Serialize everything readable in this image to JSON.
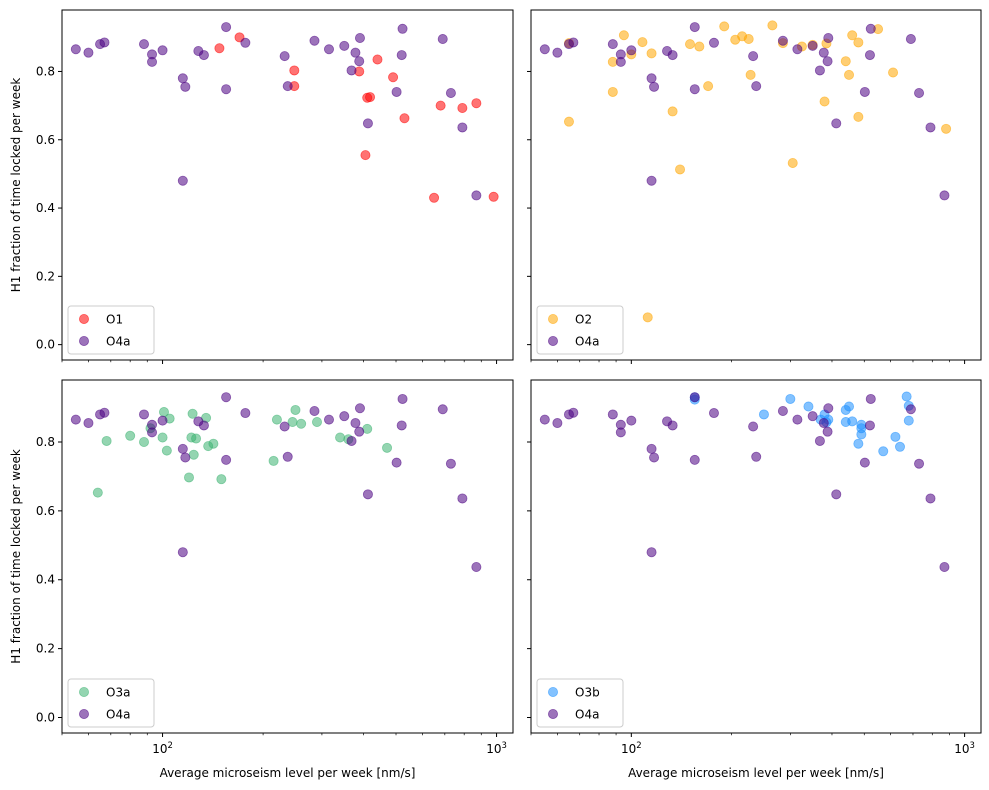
{
  "chart_data": [
    {
      "type": "scatter",
      "ylabel": "H1 fraction of time locked per week",
      "xlabel": "",
      "xscale": "log",
      "xlim": [
        50,
        1120
      ],
      "ylim": [
        -0.045,
        0.98
      ],
      "xticks": [
        {
          "value": 100,
          "label": "10²"
        },
        {
          "value": 1000,
          "label": "10³"
        }
      ],
      "yticks": [
        "0.0",
        "0.2",
        "0.4",
        "0.6",
        "0.8"
      ],
      "legend_position": "lower-left",
      "series": [
        {
          "name": "O1",
          "color": "#ff0000",
          "points": [
            [
              148,
              0.868
            ],
            [
              170,
              0.9
            ],
            [
              248,
              0.803
            ],
            [
              248,
              0.757
            ],
            [
              388,
              0.8
            ],
            [
              405,
              0.555
            ],
            [
              410,
              0.723
            ],
            [
              418,
              0.725
            ],
            [
              440,
              0.835
            ],
            [
              490,
              0.783
            ],
            [
              530,
              0.663
            ],
            [
              650,
              0.43
            ],
            [
              680,
              0.7
            ],
            [
              790,
              0.693
            ],
            [
              870,
              0.707
            ],
            [
              980,
              0.433
            ]
          ]
        },
        {
          "name": "O4a",
          "color": "#4b0082",
          "points": [
            [
              55,
              0.865
            ],
            [
              60,
              0.855
            ],
            [
              65,
              0.88
            ],
            [
              67,
              0.885
            ],
            [
              88,
              0.88
            ],
            [
              93,
              0.828
            ],
            [
              93,
              0.85
            ],
            [
              100,
              0.862
            ],
            [
              115,
              0.78
            ],
            [
              115,
              0.48
            ],
            [
              117,
              0.755
            ],
            [
              128,
              0.86
            ],
            [
              133,
              0.848
            ],
            [
              155,
              0.93
            ],
            [
              155,
              0.748
            ],
            [
              177,
              0.884
            ],
            [
              232,
              0.845
            ],
            [
              237,
              0.757
            ],
            [
              285,
              0.89
            ],
            [
              315,
              0.865
            ],
            [
              350,
              0.875
            ],
            [
              368,
              0.803
            ],
            [
              378,
              0.855
            ],
            [
              388,
              0.83
            ],
            [
              390,
              0.898
            ],
            [
              412,
              0.648
            ],
            [
              502,
              0.74
            ],
            [
              520,
              0.848
            ],
            [
              523,
              0.925
            ],
            [
              690,
              0.895
            ],
            [
              730,
              0.737
            ],
            [
              790,
              0.636
            ],
            [
              870,
              0.437
            ]
          ]
        }
      ]
    },
    {
      "type": "scatter",
      "ylabel": "",
      "xlabel": "",
      "xscale": "log",
      "xlim": [
        50,
        1120
      ],
      "ylim": [
        -0.045,
        0.98
      ],
      "xticks": [
        {
          "value": 100,
          "label": "10²"
        },
        {
          "value": 1000,
          "label": "10³"
        }
      ],
      "yticks": [
        "0.0",
        "0.2",
        "0.4",
        "0.6",
        "0.8"
      ],
      "legend_position": "lower-left",
      "series": [
        {
          "name": "O2",
          "color": "#ffa500",
          "points": [
            [
              65,
              0.653
            ],
            [
              65,
              0.883
            ],
            [
              88,
              0.74
            ],
            [
              88,
              0.828
            ],
            [
              95,
              0.906
            ],
            [
              100,
              0.85
            ],
            [
              108,
              0.886
            ],
            [
              112,
              0.08
            ],
            [
              115,
              0.853
            ],
            [
              133,
              0.683
            ],
            [
              140,
              0.513
            ],
            [
              150,
              0.88
            ],
            [
              160,
              0.873
            ],
            [
              170,
              0.757
            ],
            [
              190,
              0.932
            ],
            [
              205,
              0.893
            ],
            [
              215,
              0.903
            ],
            [
              225,
              0.895
            ],
            [
              228,
              0.79
            ],
            [
              265,
              0.935
            ],
            [
              285,
              0.883
            ],
            [
              305,
              0.532
            ],
            [
              325,
              0.873
            ],
            [
              350,
              0.878
            ],
            [
              380,
              0.712
            ],
            [
              385,
              0.882
            ],
            [
              440,
              0.83
            ],
            [
              450,
              0.79
            ],
            [
              460,
              0.906
            ],
            [
              480,
              0.667
            ],
            [
              480,
              0.885
            ],
            [
              550,
              0.924
            ],
            [
              610,
              0.797
            ],
            [
              880,
              0.632
            ]
          ]
        },
        {
          "name": "O4a",
          "color": "#4b0082",
          "points": [
            [
              55,
              0.865
            ],
            [
              60,
              0.855
            ],
            [
              65,
              0.88
            ],
            [
              67,
              0.885
            ],
            [
              88,
              0.88
            ],
            [
              93,
              0.828
            ],
            [
              93,
              0.85
            ],
            [
              100,
              0.862
            ],
            [
              115,
              0.78
            ],
            [
              115,
              0.48
            ],
            [
              117,
              0.755
            ],
            [
              128,
              0.86
            ],
            [
              133,
              0.848
            ],
            [
              155,
              0.93
            ],
            [
              155,
              0.748
            ],
            [
              177,
              0.884
            ],
            [
              232,
              0.845
            ],
            [
              237,
              0.757
            ],
            [
              285,
              0.89
            ],
            [
              315,
              0.865
            ],
            [
              350,
              0.875
            ],
            [
              368,
              0.803
            ],
            [
              378,
              0.855
            ],
            [
              388,
              0.83
            ],
            [
              390,
              0.898
            ],
            [
              412,
              0.648
            ],
            [
              502,
              0.74
            ],
            [
              520,
              0.848
            ],
            [
              523,
              0.925
            ],
            [
              690,
              0.895
            ],
            [
              730,
              0.737
            ],
            [
              790,
              0.636
            ],
            [
              870,
              0.437
            ]
          ]
        }
      ]
    },
    {
      "type": "scatter",
      "ylabel": "H1 fraction of time locked per week",
      "xlabel": "Average microseism level per week [nm/s]",
      "xscale": "log",
      "xlim": [
        50,
        1120
      ],
      "ylim": [
        -0.045,
        0.98
      ],
      "xticks": [
        {
          "value": 100,
          "label": "10²"
        },
        {
          "value": 1000,
          "label": "10³"
        }
      ],
      "yticks": [
        "0.0",
        "0.2",
        "0.4",
        "0.6",
        "0.8"
      ],
      "legend_position": "lower-left",
      "series": [
        {
          "name": "O3a",
          "color": "#3cb371",
          "points": [
            [
              64,
              0.653
            ],
            [
              68,
              0.803
            ],
            [
              80,
              0.818
            ],
            [
              88,
              0.8
            ],
            [
              92,
              0.84
            ],
            [
              100,
              0.813
            ],
            [
              101,
              0.887
            ],
            [
              103,
              0.775
            ],
            [
              105,
              0.868
            ],
            [
              120,
              0.697
            ],
            [
              122,
              0.813
            ],
            [
              123,
              0.882
            ],
            [
              124,
              0.763
            ],
            [
              126,
              0.81
            ],
            [
              135,
              0.87
            ],
            [
              137,
              0.788
            ],
            [
              142,
              0.795
            ],
            [
              150,
              0.692
            ],
            [
              215,
              0.745
            ],
            [
              220,
              0.865
            ],
            [
              250,
              0.893
            ],
            [
              260,
              0.853
            ],
            [
              245,
              0.858
            ],
            [
              290,
              0.858
            ],
            [
              340,
              0.813
            ],
            [
              360,
              0.808
            ],
            [
              410,
              0.838
            ],
            [
              470,
              0.783
            ]
          ]
        },
        {
          "name": "O4a",
          "color": "#4b0082",
          "points": [
            [
              55,
              0.865
            ],
            [
              60,
              0.855
            ],
            [
              65,
              0.88
            ],
            [
              67,
              0.885
            ],
            [
              88,
              0.88
            ],
            [
              93,
              0.828
            ],
            [
              93,
              0.85
            ],
            [
              100,
              0.862
            ],
            [
              115,
              0.78
            ],
            [
              115,
              0.48
            ],
            [
              117,
              0.755
            ],
            [
              128,
              0.86
            ],
            [
              133,
              0.848
            ],
            [
              155,
              0.93
            ],
            [
              155,
              0.748
            ],
            [
              177,
              0.884
            ],
            [
              232,
              0.845
            ],
            [
              237,
              0.757
            ],
            [
              285,
              0.89
            ],
            [
              315,
              0.865
            ],
            [
              350,
              0.875
            ],
            [
              368,
              0.803
            ],
            [
              378,
              0.855
            ],
            [
              388,
              0.83
            ],
            [
              390,
              0.898
            ],
            [
              412,
              0.648
            ],
            [
              502,
              0.74
            ],
            [
              520,
              0.848
            ],
            [
              523,
              0.925
            ],
            [
              690,
              0.895
            ],
            [
              730,
              0.737
            ],
            [
              790,
              0.636
            ],
            [
              870,
              0.437
            ]
          ]
        }
      ]
    },
    {
      "type": "scatter",
      "ylabel": "",
      "xlabel": "Average microseism level per week [nm/s]",
      "xscale": "log",
      "xlim": [
        50,
        1120
      ],
      "ylim": [
        -0.045,
        0.98
      ],
      "xticks": [
        {
          "value": 100,
          "label": "10²"
        },
        {
          "value": 1000,
          "label": "10³"
        }
      ],
      "yticks": [
        "0.0",
        "0.2",
        "0.4",
        "0.6",
        "0.8"
      ],
      "legend_position": "lower-left",
      "series": [
        {
          "name": "O3b",
          "color": "#1e90ff",
          "points": [
            [
              155,
              0.923
            ],
            [
              155,
              0.93
            ],
            [
              250,
              0.88
            ],
            [
              300,
              0.925
            ],
            [
              340,
              0.903
            ],
            [
              370,
              0.865
            ],
            [
              380,
              0.88
            ],
            [
              385,
              0.857
            ],
            [
              390,
              0.865
            ],
            [
              440,
              0.893
            ],
            [
              440,
              0.858
            ],
            [
              450,
              0.903
            ],
            [
              460,
              0.86
            ],
            [
              480,
              0.795
            ],
            [
              490,
              0.822
            ],
            [
              490,
              0.84
            ],
            [
              490,
              0.85
            ],
            [
              570,
              0.773
            ],
            [
              620,
              0.815
            ],
            [
              640,
              0.786
            ],
            [
              670,
              0.932
            ],
            [
              680,
              0.905
            ],
            [
              680,
              0.862
            ]
          ]
        },
        {
          "name": "O4a",
          "color": "#4b0082",
          "points": [
            [
              55,
              0.865
            ],
            [
              60,
              0.855
            ],
            [
              65,
              0.88
            ],
            [
              67,
              0.885
            ],
            [
              88,
              0.88
            ],
            [
              93,
              0.828
            ],
            [
              93,
              0.85
            ],
            [
              100,
              0.862
            ],
            [
              115,
              0.78
            ],
            [
              115,
              0.48
            ],
            [
              117,
              0.755
            ],
            [
              128,
              0.86
            ],
            [
              133,
              0.848
            ],
            [
              155,
              0.93
            ],
            [
              155,
              0.748
            ],
            [
              177,
              0.884
            ],
            [
              232,
              0.845
            ],
            [
              237,
              0.757
            ],
            [
              285,
              0.89
            ],
            [
              315,
              0.865
            ],
            [
              350,
              0.875
            ],
            [
              368,
              0.803
            ],
            [
              378,
              0.855
            ],
            [
              388,
              0.83
            ],
            [
              390,
              0.898
            ],
            [
              412,
              0.648
            ],
            [
              502,
              0.74
            ],
            [
              520,
              0.848
            ],
            [
              523,
              0.925
            ],
            [
              690,
              0.895
            ],
            [
              730,
              0.737
            ],
            [
              790,
              0.636
            ],
            [
              870,
              0.437
            ]
          ]
        }
      ]
    }
  ]
}
